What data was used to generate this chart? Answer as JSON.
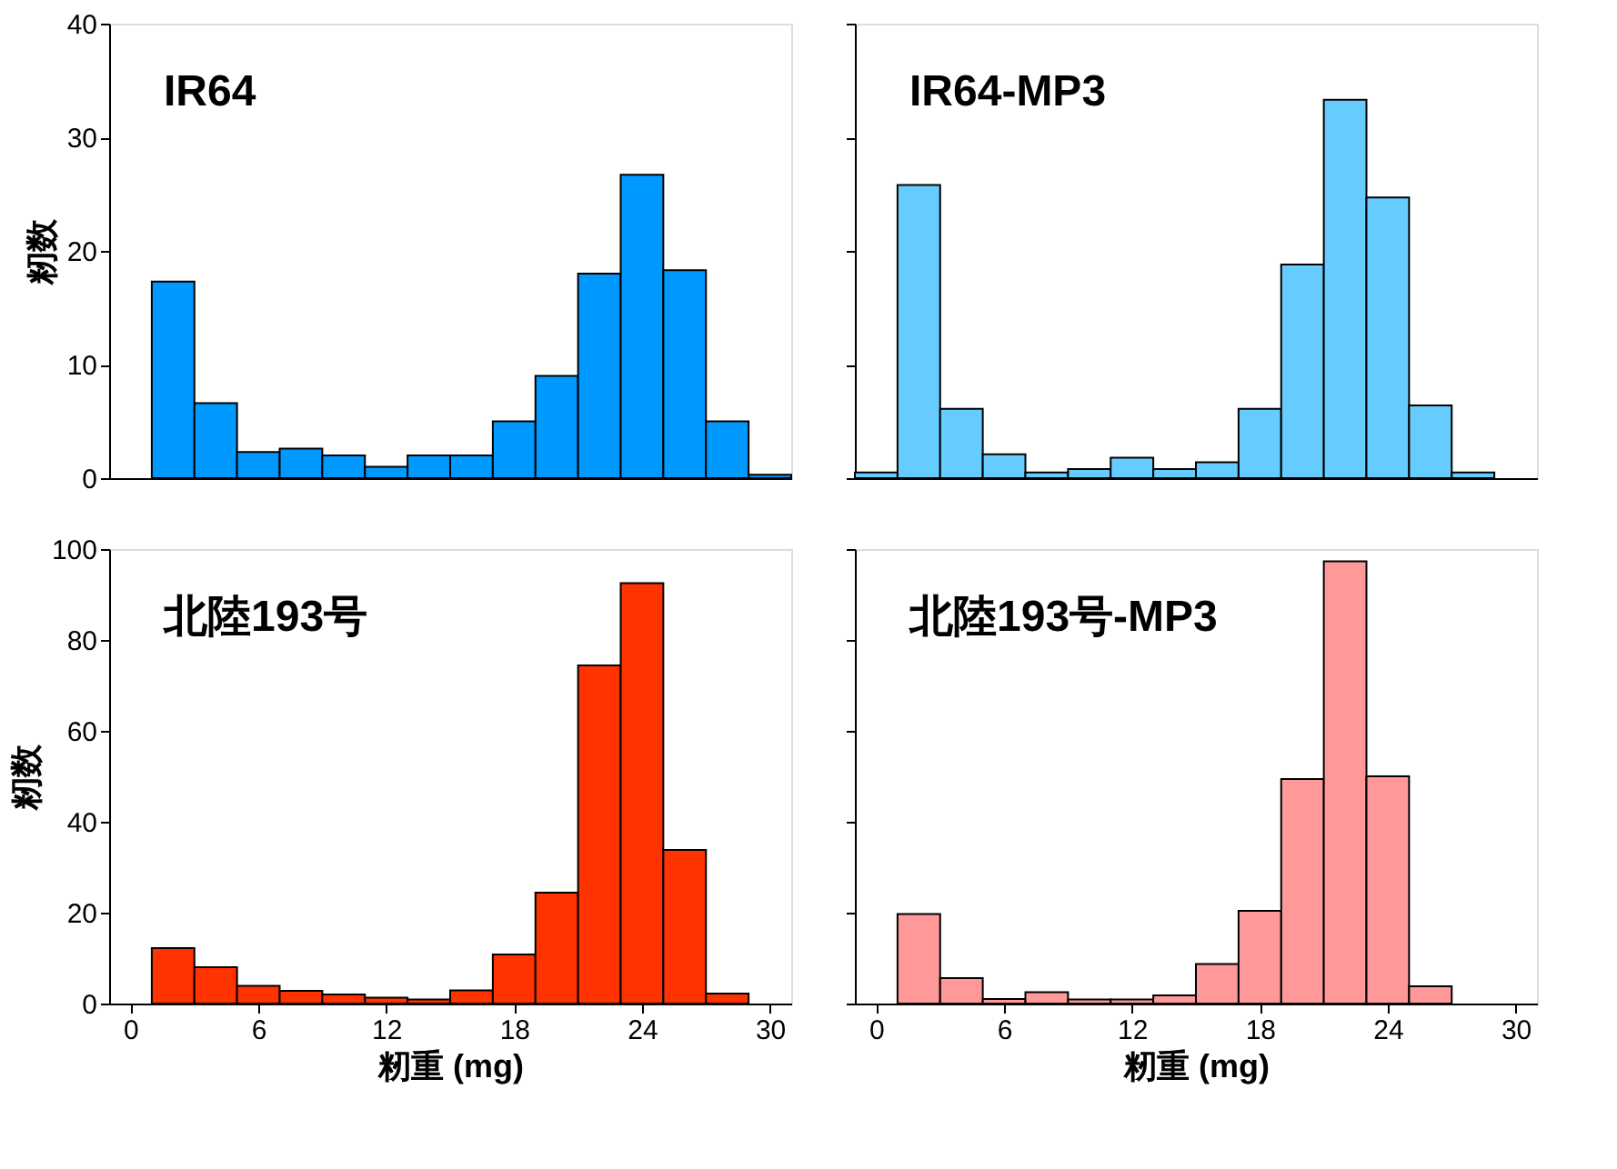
{
  "chart_data": [
    {
      "type": "histogram",
      "title": "IR64",
      "ylabel": "籾数",
      "color": "#0099ff",
      "bins": [
        1,
        3,
        5,
        7,
        9,
        11,
        13,
        15,
        17,
        19,
        21,
        23,
        25,
        27,
        29,
        31
      ],
      "values": [
        17.3,
        6.6,
        2.3,
        2.6,
        2.0,
        1.0,
        2.0,
        2.0,
        5.0,
        9.0,
        18.0,
        26.7,
        18.3,
        5.0,
        0.3
      ],
      "xlim": [
        -1,
        31
      ],
      "xticks": [
        0,
        6,
        12,
        18,
        24,
        30
      ],
      "ylim": [
        0,
        40
      ],
      "yticks": [
        0,
        10,
        20,
        30,
        40
      ],
      "tick_labels": "y"
    },
    {
      "type": "histogram",
      "title": "IR64-MP3",
      "color": "#66ccff",
      "bins": [
        -1,
        1,
        3,
        5,
        7,
        9,
        11,
        13,
        15,
        17,
        19,
        21,
        23,
        25,
        27,
        29
      ],
      "values": [
        0.5,
        25.8,
        6.1,
        2.1,
        0.5,
        0.8,
        1.8,
        0.8,
        1.4,
        6.1,
        18.8,
        33.3,
        24.7,
        6.4,
        0.5
      ],
      "xlim": [
        -1,
        31
      ],
      "xticks": [
        0,
        6,
        12,
        18,
        24,
        30
      ],
      "ylim": [
        0,
        40
      ],
      "yticks": [
        0,
        10,
        20,
        30,
        40
      ],
      "tick_labels": false
    },
    {
      "type": "histogram",
      "title": "北陸193号",
      "ylabel": "籾数",
      "xlabel": "籾重 (mg)",
      "color": "#ff3300",
      "bins": [
        1,
        3,
        5,
        7,
        9,
        11,
        13,
        15,
        17,
        19,
        21,
        23,
        25,
        27,
        29
      ],
      "values": [
        12.2,
        8.0,
        3.9,
        2.8,
        2.0,
        1.3,
        0.9,
        2.9,
        10.8,
        24.4,
        74.4,
        92.5,
        33.8,
        2.2
      ],
      "xlim": [
        -1,
        31
      ],
      "xticks": [
        0,
        6,
        12,
        18,
        24,
        30
      ],
      "ylim": [
        0,
        100
      ],
      "yticks": [
        0,
        20,
        40,
        60,
        80,
        100
      ]
    },
    {
      "type": "histogram",
      "title": "北陸193号-MP3",
      "xlabel": "籾重 (mg)",
      "color": "#ff9999",
      "bins": [
        1,
        3,
        5,
        7,
        9,
        11,
        13,
        15,
        17,
        19,
        21,
        23,
        25,
        27
      ],
      "values": [
        19.7,
        5.6,
        1.0,
        2.5,
        0.9,
        0.9,
        1.8,
        8.7,
        20.4,
        49.4,
        97.3,
        50.0,
        3.8
      ],
      "xlim": [
        -1,
        31
      ],
      "xticks": [
        0,
        6,
        12,
        18,
        24,
        30
      ],
      "ylim": [
        0,
        100
      ],
      "yticks": [
        0,
        20,
        40,
        60,
        80,
        100
      ],
      "tick_labels": "x"
    }
  ]
}
